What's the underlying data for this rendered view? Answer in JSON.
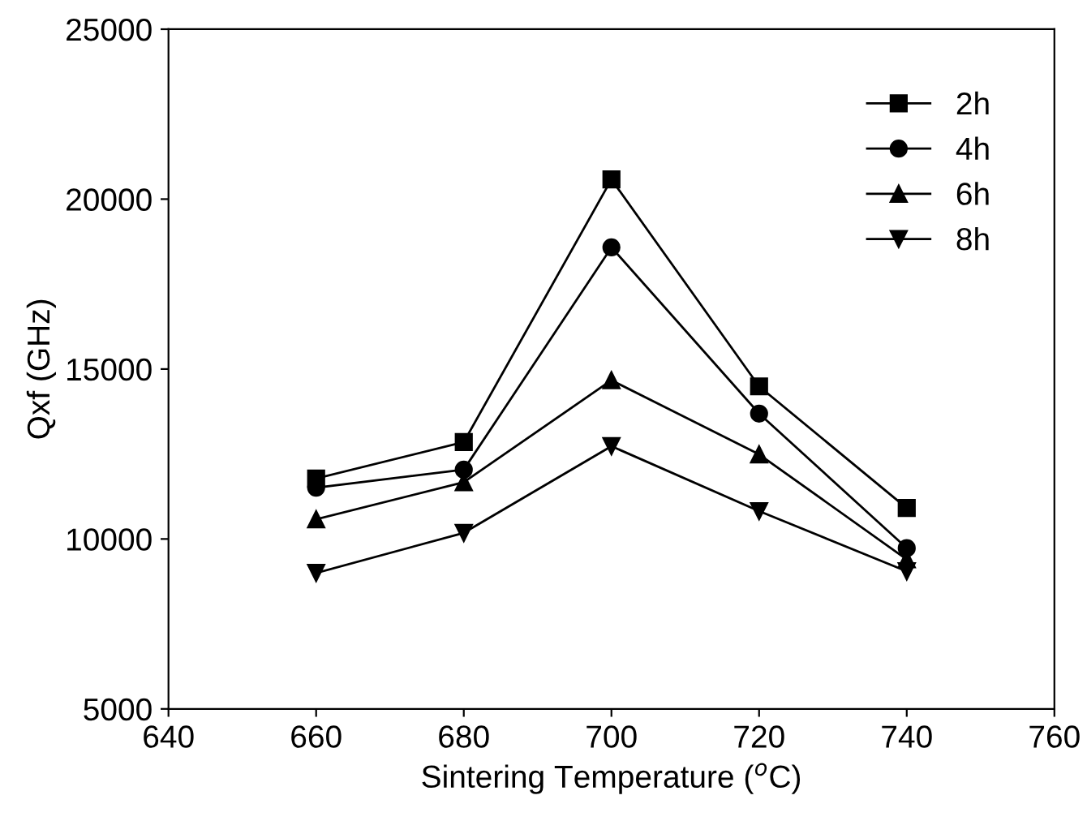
{
  "chart_data": {
    "type": "line",
    "xlabel": "Sintering Temperature ($^{o}$C)",
    "ylabel": "Qxf (GHz)",
    "x": [
      660,
      680,
      700,
      720,
      740
    ],
    "series": [
      {
        "name": "2h",
        "color": "#000000",
        "marker": "square",
        "values": [
          11780,
          12850,
          20580,
          14490,
          10910
        ]
      },
      {
        "name": "4h",
        "color": "#000000",
        "marker": "circle",
        "values": [
          11510,
          12040,
          18580,
          13690,
          9730
        ]
      },
      {
        "name": "6h",
        "color": "#000000",
        "marker": "triangle",
        "values": [
          10580,
          11670,
          14670,
          12490,
          9400
        ]
      },
      {
        "name": "8h",
        "color": "#000000",
        "marker": "triangle_down",
        "values": [
          9000,
          10180,
          12730,
          10820,
          9050
        ]
      }
    ],
    "xlim": [
      640,
      760
    ],
    "xticks": [
      640,
      660,
      680,
      700,
      720,
      740,
      760
    ],
    "ylim": [
      5000,
      25000
    ],
    "yticks": [
      5000,
      10000,
      15000,
      20000,
      25000
    ],
    "grid": false,
    "legend": "top right",
    "line_style": "solid"
  }
}
